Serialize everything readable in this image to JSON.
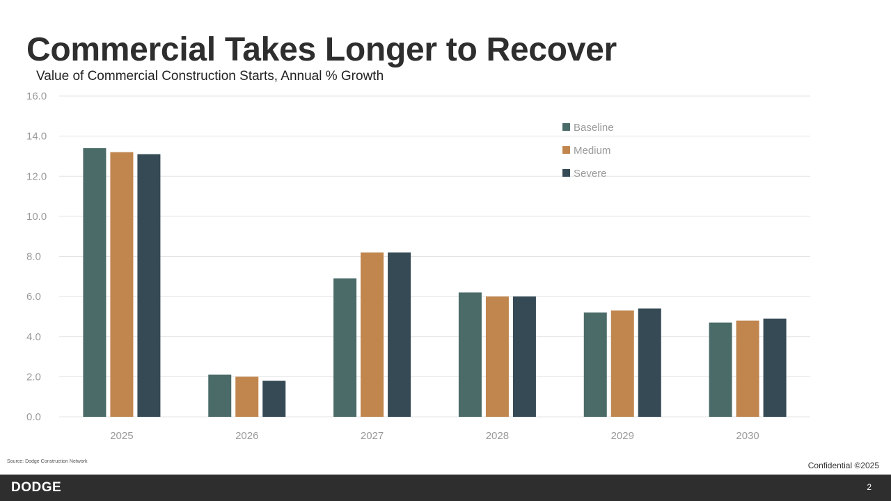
{
  "slide": {
    "title": "Commercial Takes Longer to Recover",
    "subtitle": "Value of Commercial Construction Starts, Annual % Growth",
    "source": "Source: Dodge Construction Network",
    "confidential": "Confidential ©2025",
    "logo": "DODGE",
    "page_number": "2"
  },
  "chart_data": {
    "type": "bar",
    "title": "",
    "xlabel": "",
    "ylabel": "",
    "categories": [
      "2025",
      "2026",
      "2027",
      "2028",
      "2029",
      "2030"
    ],
    "ylim": [
      0,
      16
    ],
    "yticks": [
      "0.0",
      "2.0",
      "4.0",
      "6.0",
      "8.0",
      "10.0",
      "12.0",
      "14.0",
      "16.0"
    ],
    "grid": true,
    "legend_position": "top-right",
    "series": [
      {
        "name": "Baseline",
        "color": "#4a6b68",
        "values": [
          13.4,
          2.1,
          6.9,
          6.2,
          5.2,
          4.7
        ]
      },
      {
        "name": "Medium",
        "color": "#c0864e",
        "values": [
          13.2,
          2.0,
          8.2,
          6.0,
          5.3,
          4.8
        ]
      },
      {
        "name": "Severe",
        "color": "#354a55",
        "values": [
          13.1,
          1.8,
          8.2,
          6.0,
          5.4,
          4.9
        ]
      }
    ]
  }
}
